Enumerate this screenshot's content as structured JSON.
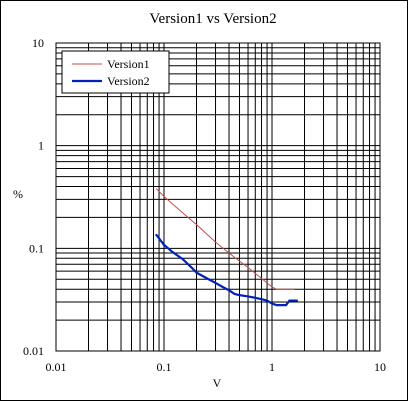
{
  "chart_data": {
    "type": "line",
    "title": "Version1 vs Version2",
    "xlabel": "V",
    "ylabel": "%",
    "xscale": "log",
    "yscale": "log",
    "xlim": [
      0.01,
      10
    ],
    "ylim": [
      0.01,
      10
    ],
    "x_ticks": [
      "0.01",
      "0.1",
      "1",
      "10"
    ],
    "y_ticks": [
      "0.01",
      "0.1",
      "1",
      "10"
    ],
    "grid": true,
    "legend_position": "top-left",
    "series": [
      {
        "name": "Version1",
        "color": "#c0504d",
        "line_width": 1,
        "points": [
          [
            0.085,
            0.38
          ],
          [
            0.1,
            0.32
          ],
          [
            0.15,
            0.22
          ],
          [
            0.2,
            0.17
          ],
          [
            0.3,
            0.115
          ],
          [
            0.4,
            0.09
          ],
          [
            0.5,
            0.075
          ],
          [
            0.6,
            0.065
          ],
          [
            0.7,
            0.057
          ],
          [
            0.8,
            0.051
          ],
          [
            0.9,
            0.046
          ],
          [
            1.0,
            0.042
          ],
          [
            1.1,
            0.04
          ],
          [
            1.3,
            0.04
          ],
          [
            1.6,
            0.04
          ]
        ]
      },
      {
        "name": "Version2",
        "color": "#0022bb",
        "line_width": 2.2,
        "points": [
          [
            0.085,
            0.135
          ],
          [
            0.09,
            0.125
          ],
          [
            0.1,
            0.108
          ],
          [
            0.12,
            0.092
          ],
          [
            0.15,
            0.078
          ],
          [
            0.18,
            0.065
          ],
          [
            0.2,
            0.058
          ],
          [
            0.25,
            0.051
          ],
          [
            0.3,
            0.046
          ],
          [
            0.35,
            0.042
          ],
          [
            0.4,
            0.039
          ],
          [
            0.45,
            0.036
          ],
          [
            0.5,
            0.035
          ],
          [
            0.6,
            0.034
          ],
          [
            0.7,
            0.033
          ],
          [
            0.8,
            0.032
          ],
          [
            0.9,
            0.031
          ],
          [
            1.0,
            0.029
          ],
          [
            1.1,
            0.028
          ],
          [
            1.2,
            0.028
          ],
          [
            1.35,
            0.028
          ],
          [
            1.45,
            0.031
          ],
          [
            1.55,
            0.031
          ],
          [
            1.7,
            0.031
          ]
        ]
      }
    ]
  }
}
